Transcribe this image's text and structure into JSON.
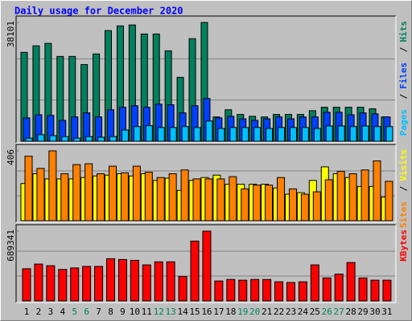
{
  "chart_data": [
    {
      "type": "bar",
      "title": "Daily usage for December 2020",
      "ylim": [
        0,
        38101
      ],
      "yticks": [
        38101
      ],
      "separator": "/",
      "series": [
        {
          "name": "Hits",
          "color": "#00805c",
          "values": [
            28500,
            30600,
            31400,
            27200,
            27200,
            24600,
            28000,
            35500,
            37000,
            37300,
            34400,
            34400,
            29000,
            20500,
            32900,
            38101,
            7800,
            10100,
            8600,
            8000,
            7800,
            8600,
            8600,
            8600,
            9800,
            10900,
            10900,
            10900,
            10900,
            10400,
            7800
          ]
        },
        {
          "name": "Files",
          "color": "#0040ff",
          "values": [
            7500,
            8500,
            8300,
            6700,
            7800,
            9100,
            7800,
            10100,
            10900,
            11400,
            10900,
            11900,
            11700,
            9100,
            11400,
            13700,
            7500,
            8000,
            7200,
            6700,
            7200,
            7800,
            7200,
            7800,
            7800,
            9300,
            9300,
            8500,
            9100,
            8800,
            7800
          ]
        },
        {
          "name": "Pages",
          "color": "#00c0ff",
          "values": [
            1000,
            2100,
            1800,
            1500,
            1000,
            1500,
            1300,
            1500,
            3600,
            4700,
            5000,
            4400,
            4400,
            4700,
            4400,
            6500,
            4100,
            4400,
            4400,
            4400,
            4100,
            4400,
            4400,
            4400,
            4100,
            4900,
            4900,
            4700,
            4900,
            4700,
            4700
          ]
        }
      ]
    },
    {
      "type": "bar",
      "ylim": [
        0,
        406
      ],
      "yticks": [
        406
      ],
      "separator": "/",
      "series": [
        {
          "name": "Visits",
          "color": "#ffff00",
          "values": [
            216,
            273,
            243,
            243,
            243,
            251,
            260,
            265,
            273,
            260,
            273,
            234,
            247,
            176,
            234,
            251,
            265,
            212,
            212,
            212,
            212,
            190,
            154,
            163,
            234,
            313,
            273,
            251,
            199,
            199,
            137
          ]
        },
        {
          "name": "Sites",
          "color": "#ff8000",
          "values": [
            375,
            304,
            406,
            273,
            326,
            331,
            273,
            317,
            278,
            317,
            282,
            251,
            273,
            295,
            243,
            243,
            243,
            256,
            185,
            207,
            207,
            251,
            185,
            154,
            168,
            238,
            287,
            273,
            295,
            348,
            229
          ]
        }
      ]
    },
    {
      "type": "bar",
      "ylim": [
        0,
        689341
      ],
      "yticks": [
        689341
      ],
      "categories": [
        1,
        2,
        3,
        4,
        5,
        6,
        7,
        8,
        9,
        10,
        11,
        12,
        13,
        14,
        15,
        16,
        17,
        18,
        19,
        20,
        21,
        22,
        23,
        24,
        25,
        26,
        27,
        28,
        29,
        30,
        31
      ],
      "category_colors": [
        "#000000",
        "#000000",
        "#000000",
        "#000000",
        "#00805c",
        "#00805c",
        "#000000",
        "#000000",
        "#000000",
        "#000000",
        "#000000",
        "#00805c",
        "#00805c",
        "#000000",
        "#000000",
        "#000000",
        "#000000",
        "#000000",
        "#00805c",
        "#00805c",
        "#000000",
        "#000000",
        "#000000",
        "#000000",
        "#000000",
        "#00805c",
        "#00805c",
        "#000000",
        "#000000",
        "#000000",
        "#000000"
      ],
      "series": [
        {
          "name": "KBytes",
          "color": "#ff0000",
          "values": [
            318000,
            364000,
            348000,
            311000,
            326000,
            341000,
            341000,
            417000,
            409000,
            401000,
            356000,
            386000,
            386000,
            242000,
            591000,
            689341,
            197000,
            212000,
            205000,
            212000,
            212000,
            189000,
            182000,
            189000,
            356000,
            227000,
            265000,
            379000,
            227000,
            205000,
            205000
          ]
        }
      ]
    }
  ]
}
